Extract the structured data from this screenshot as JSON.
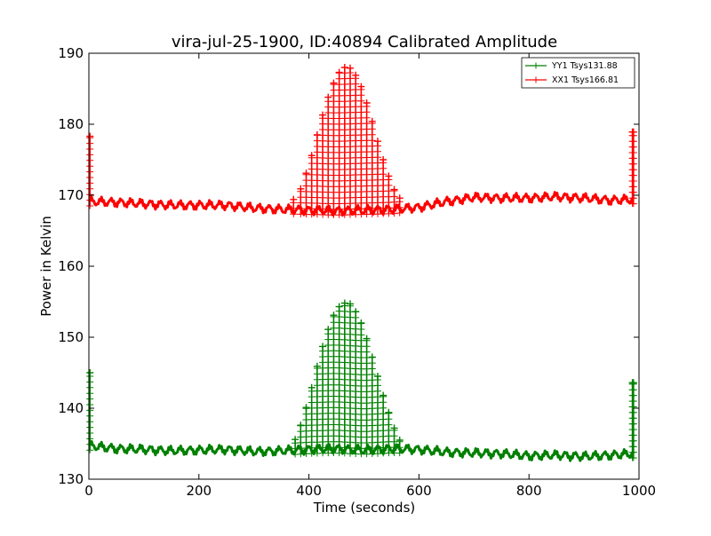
{
  "colors": {
    "yy1": "#008000",
    "xx1": "#ff0000"
  },
  "chart_data": {
    "type": "line",
    "title": "vira-jul-25-1900, ID:40894 Calibrated Amplitude",
    "xlabel": "Time (seconds)",
    "ylabel": "Power in Kelvin",
    "xlim": [
      0,
      1000
    ],
    "ylim": [
      130,
      190
    ],
    "xticks": [
      0,
      200,
      400,
      600,
      800,
      1000
    ],
    "yticks": [
      130,
      140,
      150,
      160,
      170,
      180,
      190
    ],
    "grid": false,
    "legend_position": "top-right",
    "series": [
      {
        "name": "YY1 Tsys131.88",
        "color": "#008000",
        "marker": "+",
        "baseline": [
          [
            3,
            134.7
          ],
          [
            50,
            134.3
          ],
          [
            100,
            134.2
          ],
          [
            150,
            134.0
          ],
          [
            200,
            134.1
          ],
          [
            250,
            134.2
          ],
          [
            300,
            133.9
          ],
          [
            350,
            134.0
          ],
          [
            400,
            134.2
          ],
          [
            450,
            134.3
          ],
          [
            500,
            134.1
          ],
          [
            550,
            134.3
          ],
          [
            600,
            134.2
          ],
          [
            650,
            133.8
          ],
          [
            700,
            133.7
          ],
          [
            750,
            133.6
          ],
          [
            800,
            133.3
          ],
          [
            850,
            133.4
          ],
          [
            900,
            133.2
          ],
          [
            950,
            133.4
          ],
          [
            990,
            133.6
          ]
        ],
        "spikes": [
          [
            2,
            145.0
          ],
          [
            375,
            135.6
          ],
          [
            385,
            137.6
          ],
          [
            395,
            140.1
          ],
          [
            405,
            142.9
          ],
          [
            415,
            145.9
          ],
          [
            425,
            148.7
          ],
          [
            435,
            151.1
          ],
          [
            445,
            153.1
          ],
          [
            455,
            154.3
          ],
          [
            465,
            154.8
          ],
          [
            475,
            154.7
          ],
          [
            485,
            153.6
          ],
          [
            495,
            152.0
          ],
          [
            505,
            149.8
          ],
          [
            515,
            147.2
          ],
          [
            525,
            144.5
          ],
          [
            535,
            141.8
          ],
          [
            545,
            139.4
          ],
          [
            555,
            137.2
          ],
          [
            565,
            135.5
          ],
          [
            988,
            143.6
          ],
          [
            990,
            143.6
          ]
        ]
      },
      {
        "name": "XX1 Tsys166.81",
        "color": "#ff0000",
        "marker": "+",
        "baseline": [
          [
            3,
            169.1
          ],
          [
            50,
            169.0
          ],
          [
            100,
            168.8
          ],
          [
            150,
            168.6
          ],
          [
            200,
            168.6
          ],
          [
            250,
            168.6
          ],
          [
            300,
            168.2
          ],
          [
            350,
            168.0
          ],
          [
            400,
            167.9
          ],
          [
            450,
            167.8
          ],
          [
            500,
            167.9
          ],
          [
            550,
            168.0
          ],
          [
            600,
            168.3
          ],
          [
            650,
            169.1
          ],
          [
            700,
            169.7
          ],
          [
            750,
            169.6
          ],
          [
            800,
            169.6
          ],
          [
            850,
            169.8
          ],
          [
            900,
            169.6
          ],
          [
            950,
            169.3
          ],
          [
            990,
            169.4
          ]
        ],
        "spikes": [
          [
            2,
            178.3
          ],
          [
            372,
            169.4
          ],
          [
            385,
            170.9
          ],
          [
            395,
            173.1
          ],
          [
            405,
            175.6
          ],
          [
            415,
            178.5
          ],
          [
            425,
            181.3
          ],
          [
            435,
            183.8
          ],
          [
            445,
            185.8
          ],
          [
            455,
            187.3
          ],
          [
            465,
            188.0
          ],
          [
            475,
            187.9
          ],
          [
            485,
            186.9
          ],
          [
            495,
            185.3
          ],
          [
            505,
            183.0
          ],
          [
            515,
            180.4
          ],
          [
            525,
            177.6
          ],
          [
            535,
            175.0
          ],
          [
            545,
            172.7
          ],
          [
            555,
            170.8
          ],
          [
            565,
            169.6
          ],
          [
            988,
            178.9
          ],
          [
            990,
            178.9
          ]
        ]
      }
    ]
  }
}
